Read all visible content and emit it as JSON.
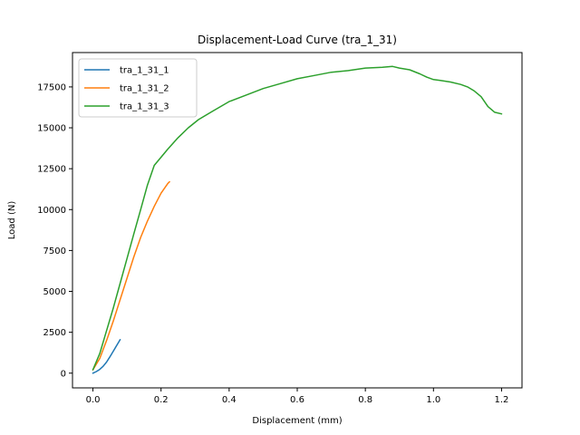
{
  "chart_data": {
    "type": "line",
    "title": "Displacement-Load Curve (tra_1_31)",
    "xlabel": "Displacement (mm)",
    "ylabel": "Load (N)",
    "xlim": [
      -0.06,
      1.26
    ],
    "ylim": [
      -900,
      19600
    ],
    "xticks": [
      0.0,
      0.2,
      0.4,
      0.6,
      0.8,
      1.0,
      1.2
    ],
    "xtick_labels": [
      "0.0",
      "0.2",
      "0.4",
      "0.6",
      "0.8",
      "1.0",
      "1.2"
    ],
    "yticks": [
      0,
      2500,
      5000,
      7500,
      10000,
      12500,
      15000,
      17500
    ],
    "ytick_labels": [
      "0",
      "2500",
      "5000",
      "7500",
      "10000",
      "12500",
      "15000",
      "17500"
    ],
    "grid": false,
    "legend_position": "top-left",
    "series": [
      {
        "name": "tra_1_31_1",
        "color": "#1f77b4",
        "x": [
          0.0,
          0.01,
          0.02,
          0.03,
          0.04,
          0.05,
          0.06,
          0.07,
          0.08
        ],
        "y": [
          0,
          100,
          230,
          420,
          680,
          1000,
          1350,
          1700,
          2050
        ]
      },
      {
        "name": "tra_1_31_2",
        "color": "#ff7f0e",
        "x": [
          0.0,
          0.02,
          0.04,
          0.06,
          0.08,
          0.1,
          0.12,
          0.14,
          0.16,
          0.18,
          0.2,
          0.22,
          0.225
        ],
        "y": [
          200,
          900,
          2000,
          3200,
          4500,
          5800,
          7100,
          8300,
          9300,
          10200,
          11000,
          11600,
          11700
        ]
      },
      {
        "name": "tra_1_31_3",
        "color": "#2ca02c",
        "x": [
          0.0,
          0.02,
          0.04,
          0.06,
          0.08,
          0.1,
          0.12,
          0.14,
          0.16,
          0.18,
          0.2,
          0.22,
          0.25,
          0.28,
          0.31,
          0.35,
          0.4,
          0.45,
          0.5,
          0.55,
          0.6,
          0.65,
          0.7,
          0.75,
          0.8,
          0.85,
          0.88,
          0.9,
          0.93,
          0.96,
          0.98,
          1.0,
          1.02,
          1.05,
          1.08,
          1.1,
          1.12,
          1.14,
          1.16,
          1.18,
          1.2
        ],
        "y": [
          200,
          1200,
          2600,
          4000,
          5500,
          7000,
          8500,
          10000,
          11500,
          12700,
          13200,
          13700,
          14400,
          15000,
          15500,
          16000,
          16600,
          17000,
          17400,
          17700,
          18000,
          18200,
          18400,
          18500,
          18650,
          18700,
          18750,
          18650,
          18550,
          18300,
          18100,
          17950,
          17900,
          17800,
          17650,
          17500,
          17250,
          16900,
          16300,
          15950,
          15850
        ]
      }
    ]
  }
}
